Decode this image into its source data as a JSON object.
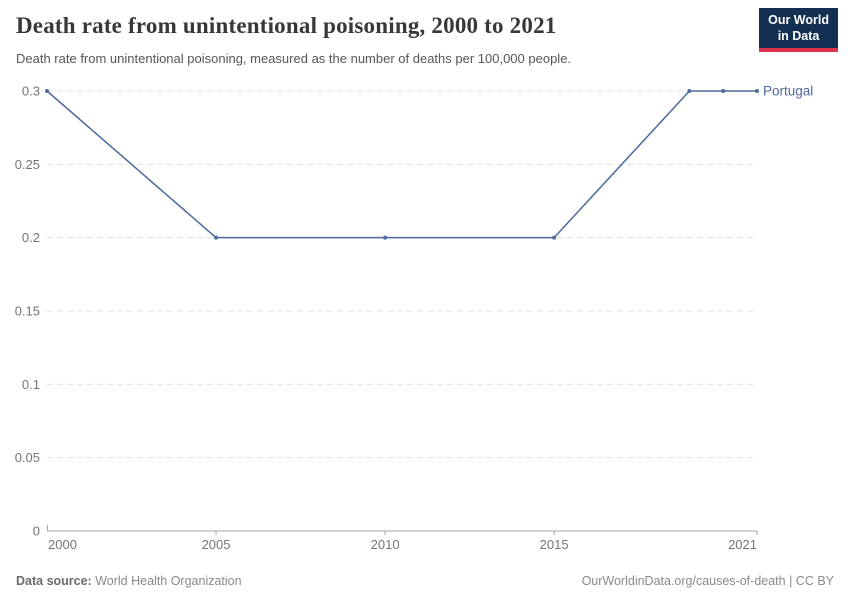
{
  "header": {
    "title": "Death rate from unintentional poisoning, 2000 to 2021",
    "subtitle": "Death rate from unintentional poisoning, measured as the number of deaths per 100,000 people.",
    "logo": {
      "line1": "Our World",
      "line2": "in Data",
      "bg_color": "#132f52",
      "bar_color": "#dc354b"
    }
  },
  "footer": {
    "data_source_label": "Data source:",
    "data_source_value": "World Health Organization",
    "attribution": "OurWorldinData.org/causes-of-death | CC BY"
  },
  "chart_data": {
    "type": "line",
    "title": "Death rate from unintentional poisoning, 2000 to 2021",
    "subtitle": "Death rate from unintentional poisoning, measured as the number of deaths per 100,000 people.",
    "xlabel": "",
    "ylabel": "",
    "series": [
      {
        "name": "Portugal",
        "color": "#4c6a9c",
        "x": [
          2000,
          2005,
          2010,
          2015,
          2019,
          2020,
          2021
        ],
        "values": [
          0.3,
          0.2,
          0.2,
          0.2,
          0.3,
          0.3,
          0.3
        ]
      }
    ],
    "xlim": [
      2000,
      2021
    ],
    "ylim": [
      0,
      0.3
    ],
    "xticks": [
      2000,
      2005,
      2010,
      2015,
      2021
    ],
    "xtick_labels": [
      "2000",
      "2005",
      "2010",
      "2015",
      "2021"
    ],
    "yticks": [
      0,
      0.05,
      0.1,
      0.15,
      0.2,
      0.25,
      0.3
    ],
    "ytick_labels": [
      "0",
      "0.05",
      "0.1",
      "0.15",
      "0.2",
      "0.25",
      "0.3"
    ],
    "grid": "horizontal-dashed",
    "legend_position": "end-of-line-label",
    "colors": {
      "gridline": "#e0e0e0",
      "axis": "#a5a5a5",
      "tick_label": "#757575",
      "line": "#4c6a9c"
    }
  }
}
